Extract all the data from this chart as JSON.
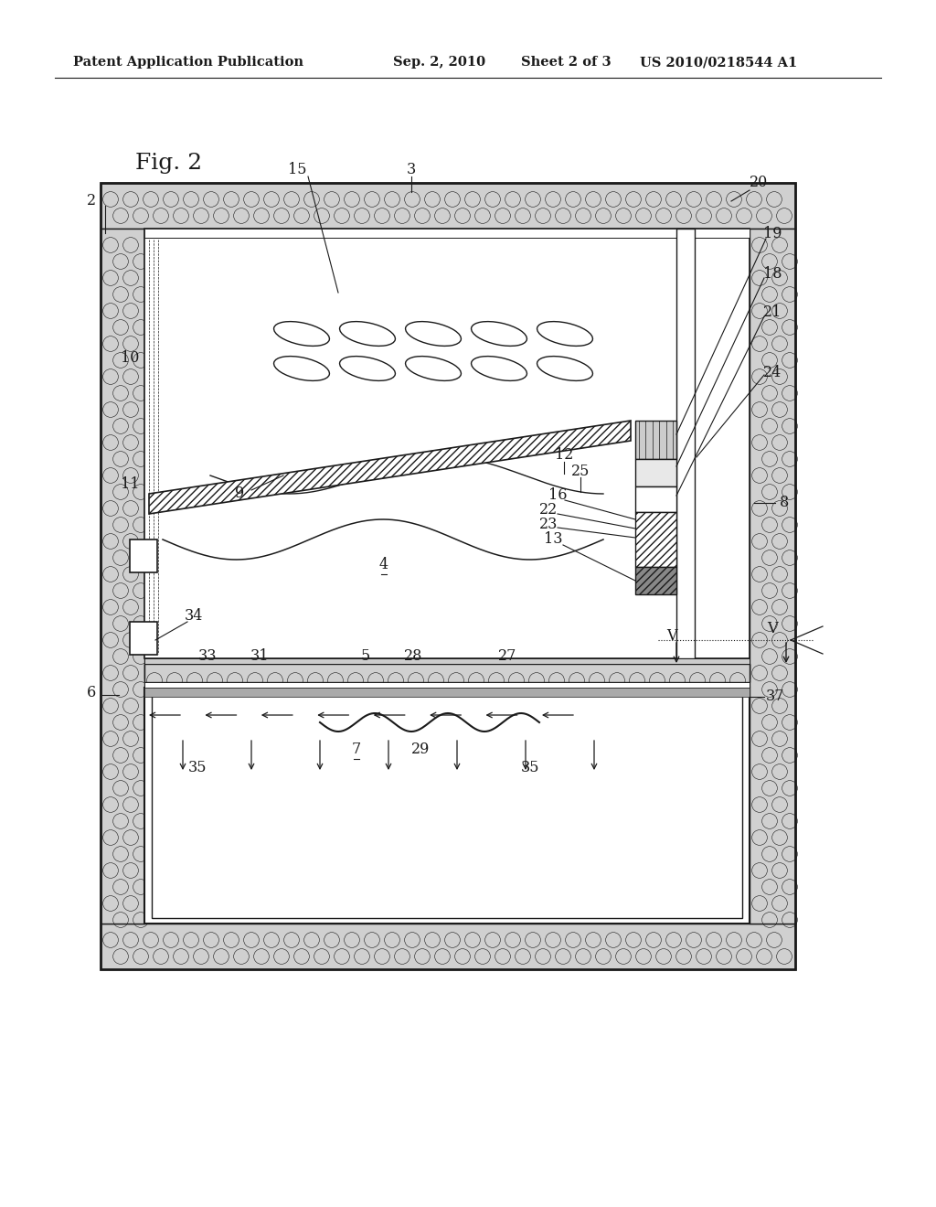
{
  "bg_color": "#ffffff",
  "line_color": "#1a1a1a",
  "header_left": "Patent Application Publication",
  "header_center": "Sep. 2, 2010   Sheet 2 of 3",
  "header_right": "US 2010/0218544 A1",
  "fig_label": "Fig. 2",
  "insulation_bg": "#d0d0d0",
  "insulation_circle_color": "#1a1a1a"
}
